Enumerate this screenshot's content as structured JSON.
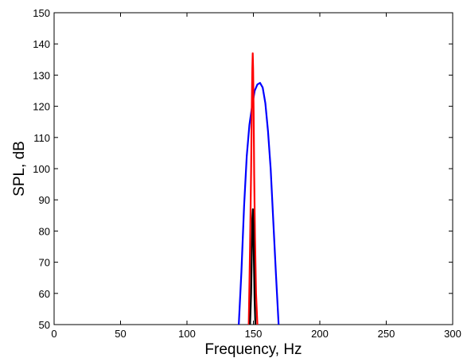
{
  "chart_data": {
    "type": "line",
    "title": "",
    "xlabel": "Frequency, Hz",
    "ylabel": "SPL, dB",
    "xlim": [
      0,
      300
    ],
    "ylim": [
      50,
      150
    ],
    "xticks": [
      0,
      50,
      100,
      150,
      200,
      250,
      300
    ],
    "yticks": [
      50,
      60,
      70,
      80,
      90,
      100,
      110,
      120,
      130,
      140,
      150
    ],
    "grid": false,
    "legend": false,
    "series": [
      {
        "color": "#0000ff",
        "x": [
          139,
          141,
          143,
          145,
          147,
          149,
          151,
          153,
          155,
          157,
          159,
          161,
          163,
          165,
          167,
          169
        ],
        "y": [
          50,
          67,
          88,
          104,
          114,
          120,
          125,
          127,
          127.5,
          126,
          121,
          112,
          100,
          83,
          66,
          50
        ]
      },
      {
        "color": "#ff0000",
        "x": [
          146.5,
          147.5,
          148.3,
          148.8,
          149.2,
          149.5,
          149.8,
          150.2,
          150.6,
          151.2,
          152,
          153
        ],
        "y": [
          50,
          75,
          100,
          120,
          132,
          137,
          132,
          118,
          98,
          78,
          60,
          50
        ]
      },
      {
        "color": "#000000",
        "x": [
          147.5,
          148.3,
          148.8,
          149.2,
          149.6,
          150,
          150.4,
          150.9,
          151.5
        ],
        "y": [
          50,
          60,
          73,
          84,
          87,
          82,
          70,
          58,
          50
        ]
      }
    ]
  }
}
